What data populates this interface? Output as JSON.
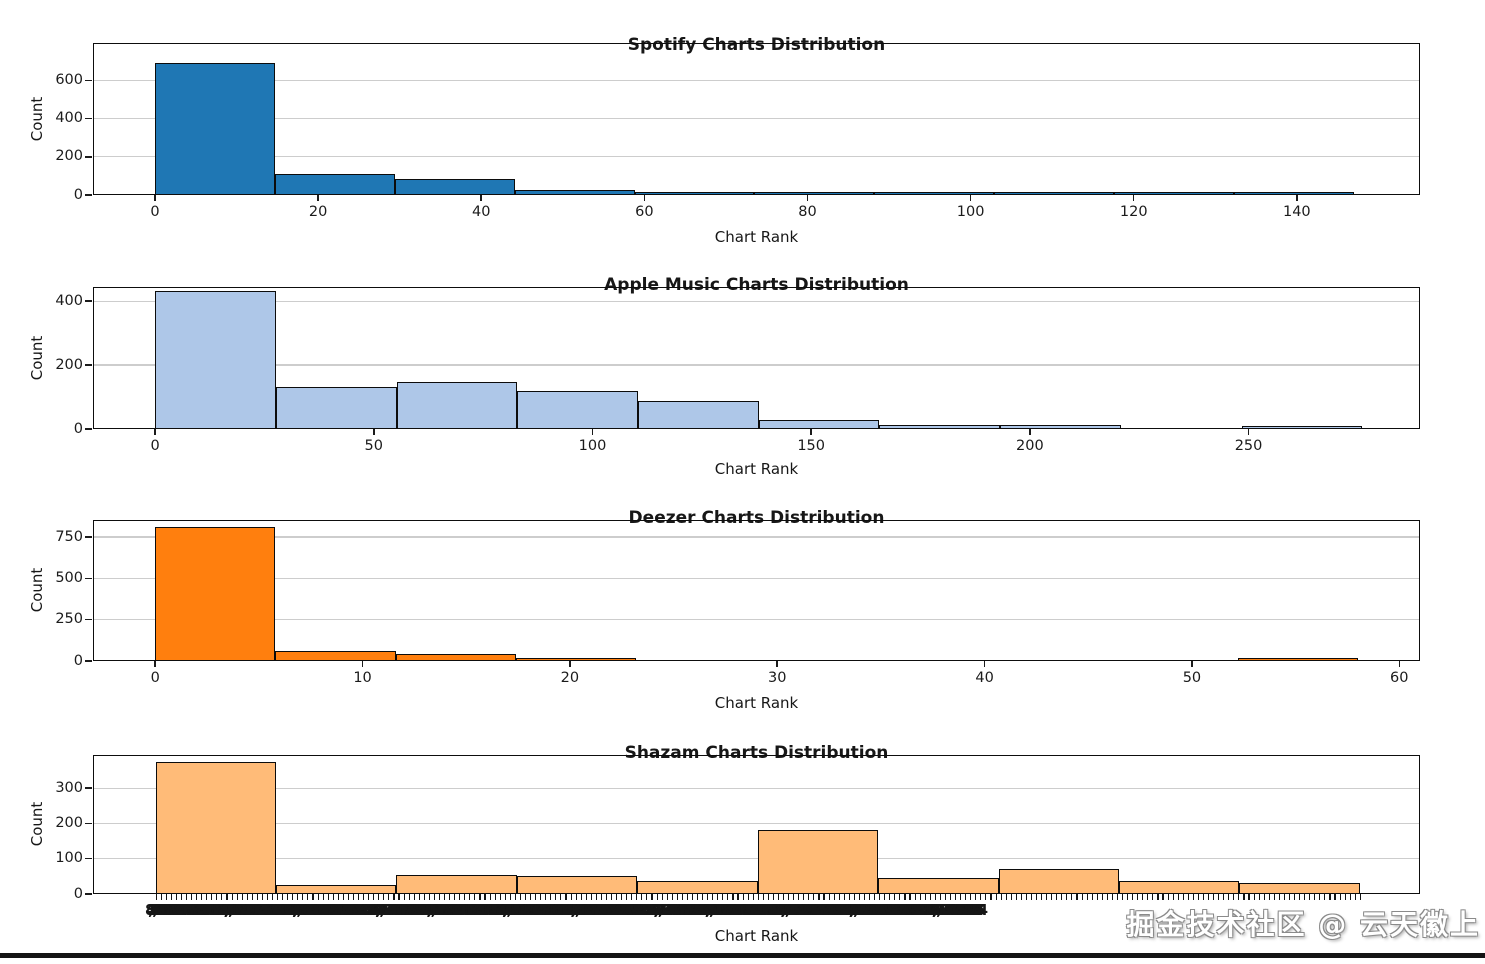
{
  "watermark": "掘金技术社区 @ 云天徽上",
  "chart_data": [
    {
      "type": "bar",
      "subtype": "histogram",
      "title": "Spotify Charts Distribution",
      "xlabel": "Chart Rank",
      "ylabel": "Count",
      "color": "#1f77b4",
      "bin_start": 0,
      "bin_width": 14.7,
      "counts": [
        690,
        112,
        85,
        25,
        12,
        10,
        5,
        4,
        2,
        1
      ],
      "xticks": [
        0,
        20,
        40,
        60,
        80,
        100,
        120,
        140
      ],
      "yticks": [
        0,
        200,
        400,
        600
      ],
      "xlim": [
        -7.6,
        155.1
      ],
      "ylim": [
        0,
        795
      ],
      "grid": "horizontal",
      "legend": "none"
    },
    {
      "type": "bar",
      "subtype": "histogram",
      "title": "Apple Music Charts Distribution",
      "xlabel": "Chart Rank",
      "ylabel": "Count",
      "color": "#aec7e8",
      "bin_start": 0,
      "bin_width": 27.6,
      "counts": [
        430,
        130,
        148,
        120,
        87,
        27,
        13,
        13,
        0,
        5
      ],
      "xticks": [
        0,
        50,
        100,
        150,
        200,
        250
      ],
      "yticks": [
        0,
        200,
        400
      ],
      "xlim": [
        -14.2,
        289.2
      ],
      "ylim": [
        0,
        444
      ],
      "grid": "horizontal",
      "legend": "none"
    },
    {
      "type": "bar",
      "subtype": "histogram",
      "title": "Deezer Charts Distribution",
      "xlabel": "Chart Rank",
      "ylabel": "Count",
      "color": "#ff7f0e",
      "bin_start": 0,
      "bin_width": 5.8,
      "counts": [
        810,
        60,
        45,
        15,
        0,
        0,
        0,
        0,
        0,
        2
      ],
      "xticks": [
        0,
        10,
        20,
        30,
        40,
        50,
        60
      ],
      "yticks": [
        0,
        250,
        500,
        750
      ],
      "xlim": [
        -3.0,
        61.0
      ],
      "ylim": [
        0,
        853
      ],
      "grid": "horizontal",
      "legend": "none"
    },
    {
      "type": "bar",
      "subtype": "histogram",
      "title": "Shazam Charts Distribution",
      "xlabel": "Chart Rank",
      "ylabel": "Count",
      "color": "#ffbb78",
      "bin_start": 0,
      "bin_width": 1,
      "counts": [
        375,
        25,
        55,
        50,
        38,
        182,
        45,
        70,
        38,
        30
      ],
      "yticks": [
        0,
        100,
        200,
        300
      ],
      "xlim": [
        -0.52,
        10.5
      ],
      "ylim": [
        0,
        394
      ],
      "grid": "horizontal",
      "legend": "none",
      "x_axis_note": "dense categorical axis: hundreds of overlapping illegible numeric rank labels",
      "xtick_garble": "839,42501765839204761582349076158342,97061583412976045821367905482,13679024381756093248175609324187562,4151749606457389254"
    }
  ]
}
